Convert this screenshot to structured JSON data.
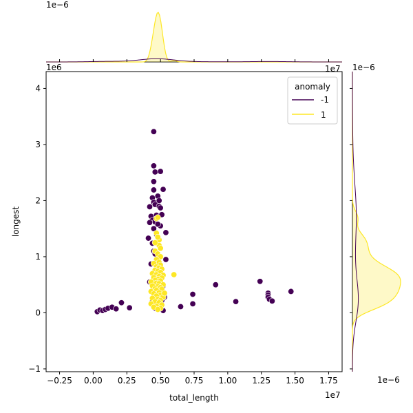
{
  "chart_data": {
    "type": "scatter",
    "title": "",
    "xlabel": "total_length",
    "ylabel": "longest",
    "x_offset_label": "1e7",
    "y_offset_label": "1e6",
    "top_marginal_offset_label": "1e−6",
    "right_marginal_offset_label": "1e−6",
    "x_scale": 10000000,
    "y_scale": 1000000,
    "xlim": [
      -0.35,
      1.85
    ],
    "ylim": [
      -1.05,
      4.3
    ],
    "x_ticks": [
      -0.25,
      0.0,
      0.25,
      0.5,
      0.75,
      1.0,
      1.25,
      1.5,
      1.75
    ],
    "x_tick_labels": [
      "−0.25",
      "0.00",
      "0.25",
      "0.50",
      "0.75",
      "1.00",
      "1.25",
      "1.50",
      "1.75"
    ],
    "y_ticks": [
      -1,
      0,
      1,
      2,
      3,
      4
    ],
    "y_tick_labels": [
      "−1",
      "0",
      "1",
      "2",
      "3",
      "4"
    ],
    "grid": false,
    "legend": {
      "title": "anomaly",
      "placement": "top-right",
      "entries": [
        {
          "label": "-1",
          "color": "#440154"
        },
        {
          "label": "1",
          "color": "#fde725"
        }
      ]
    },
    "marginals": "kde",
    "series": [
      {
        "name": "-1",
        "color": "#440154",
        "points": [
          [
            0.03,
            0.02
          ],
          [
            0.05,
            0.05
          ],
          [
            0.07,
            0.04
          ],
          [
            0.09,
            0.06
          ],
          [
            0.11,
            0.08
          ],
          [
            0.14,
            0.1
          ],
          [
            0.17,
            0.07
          ],
          [
            0.21,
            0.18
          ],
          [
            0.27,
            0.09
          ],
          [
            0.45,
            3.23
          ],
          [
            0.45,
            2.62
          ],
          [
            0.46,
            2.51
          ],
          [
            0.5,
            2.52
          ],
          [
            0.45,
            2.34
          ],
          [
            0.45,
            2.19
          ],
          [
            0.52,
            2.2
          ],
          [
            0.48,
            2.08
          ],
          [
            0.44,
            2.05
          ],
          [
            0.49,
            2.0
          ],
          [
            0.45,
            1.97
          ],
          [
            0.46,
            1.93
          ],
          [
            0.42,
            1.89
          ],
          [
            0.49,
            1.9
          ],
          [
            0.5,
            1.87
          ],
          [
            0.43,
            1.72
          ],
          [
            0.47,
            1.74
          ],
          [
            0.51,
            1.75
          ],
          [
            0.44,
            1.65
          ],
          [
            0.46,
            1.62
          ],
          [
            0.42,
            1.61
          ],
          [
            0.5,
            1.55
          ],
          [
            0.48,
            1.58
          ],
          [
            0.45,
            1.5
          ],
          [
            0.54,
            1.43
          ],
          [
            0.41,
            1.33
          ],
          [
            0.47,
            1.4
          ],
          [
            0.49,
            1.3
          ],
          [
            0.44,
            1.24
          ],
          [
            0.45,
            1.1
          ],
          [
            0.46,
            1.05
          ],
          [
            0.5,
            1.0
          ],
          [
            0.54,
            0.95
          ],
          [
            0.43,
            0.87
          ],
          [
            0.48,
            0.8
          ],
          [
            0.44,
            0.7
          ],
          [
            0.42,
            0.55
          ],
          [
            0.52,
            0.48
          ],
          [
            0.5,
            0.38
          ],
          [
            0.53,
            0.28
          ],
          [
            0.51,
            0.22
          ],
          [
            0.48,
            0.14
          ],
          [
            0.46,
            0.08
          ],
          [
            0.52,
            0.04
          ],
          [
            0.44,
            0.2
          ],
          [
            0.47,
            0.35
          ],
          [
            0.65,
            0.11
          ],
          [
            0.74,
            0.16
          ],
          [
            0.74,
            0.33
          ],
          [
            0.91,
            0.5
          ],
          [
            1.06,
            0.2
          ],
          [
            1.24,
            0.56
          ],
          [
            1.3,
            0.35
          ],
          [
            1.3,
            0.32
          ],
          [
            1.3,
            0.28
          ],
          [
            1.31,
            0.24
          ],
          [
            1.33,
            0.21
          ],
          [
            1.47,
            0.38
          ]
        ]
      },
      {
        "name": "1",
        "color": "#fde725",
        "points": [
          [
            0.47,
            1.68
          ],
          [
            0.48,
            1.7
          ],
          [
            0.49,
            1.2
          ],
          [
            0.5,
            1.15
          ],
          [
            0.46,
            1.1
          ],
          [
            0.48,
            1.05
          ],
          [
            0.5,
            1.0
          ],
          [
            0.47,
            0.95
          ],
          [
            0.49,
            0.9
          ],
          [
            0.45,
            0.88
          ],
          [
            0.5,
            0.85
          ],
          [
            0.47,
            0.82
          ],
          [
            0.49,
            0.8
          ],
          [
            0.51,
            0.78
          ],
          [
            0.46,
            0.76
          ],
          [
            0.48,
            0.74
          ],
          [
            0.5,
            0.72
          ],
          [
            0.44,
            0.7
          ],
          [
            0.47,
            0.68
          ],
          [
            0.52,
            0.67
          ],
          [
            0.49,
            0.65
          ],
          [
            0.45,
            0.63
          ],
          [
            0.51,
            0.62
          ],
          [
            0.48,
            0.6
          ],
          [
            0.46,
            0.58
          ],
          [
            0.5,
            0.57
          ],
          [
            0.43,
            0.55
          ],
          [
            0.47,
            0.53
          ],
          [
            0.49,
            0.52
          ],
          [
            0.52,
            0.5
          ],
          [
            0.44,
            0.48
          ],
          [
            0.48,
            0.47
          ],
          [
            0.5,
            0.45
          ],
          [
            0.46,
            0.43
          ],
          [
            0.51,
            0.42
          ],
          [
            0.47,
            0.4
          ],
          [
            0.43,
            0.38
          ],
          [
            0.49,
            0.36
          ],
          [
            0.45,
            0.34
          ],
          [
            0.5,
            0.32
          ],
          [
            0.47,
            0.3
          ],
          [
            0.52,
            0.28
          ],
          [
            0.44,
            0.26
          ],
          [
            0.48,
            0.24
          ],
          [
            0.5,
            0.22
          ],
          [
            0.46,
            0.2
          ],
          [
            0.49,
            0.18
          ],
          [
            0.43,
            0.16
          ],
          [
            0.51,
            0.14
          ],
          [
            0.47,
            0.12
          ],
          [
            0.45,
            0.1
          ],
          [
            0.5,
            0.08
          ],
          [
            0.48,
            0.06
          ],
          [
            0.49,
            1.3
          ],
          [
            0.47,
            1.42
          ],
          [
            0.46,
            1.25
          ],
          [
            0.48,
            1.35
          ],
          [
            0.6,
            0.68
          ],
          [
            0.53,
            0.35
          ]
        ]
      }
    ]
  }
}
